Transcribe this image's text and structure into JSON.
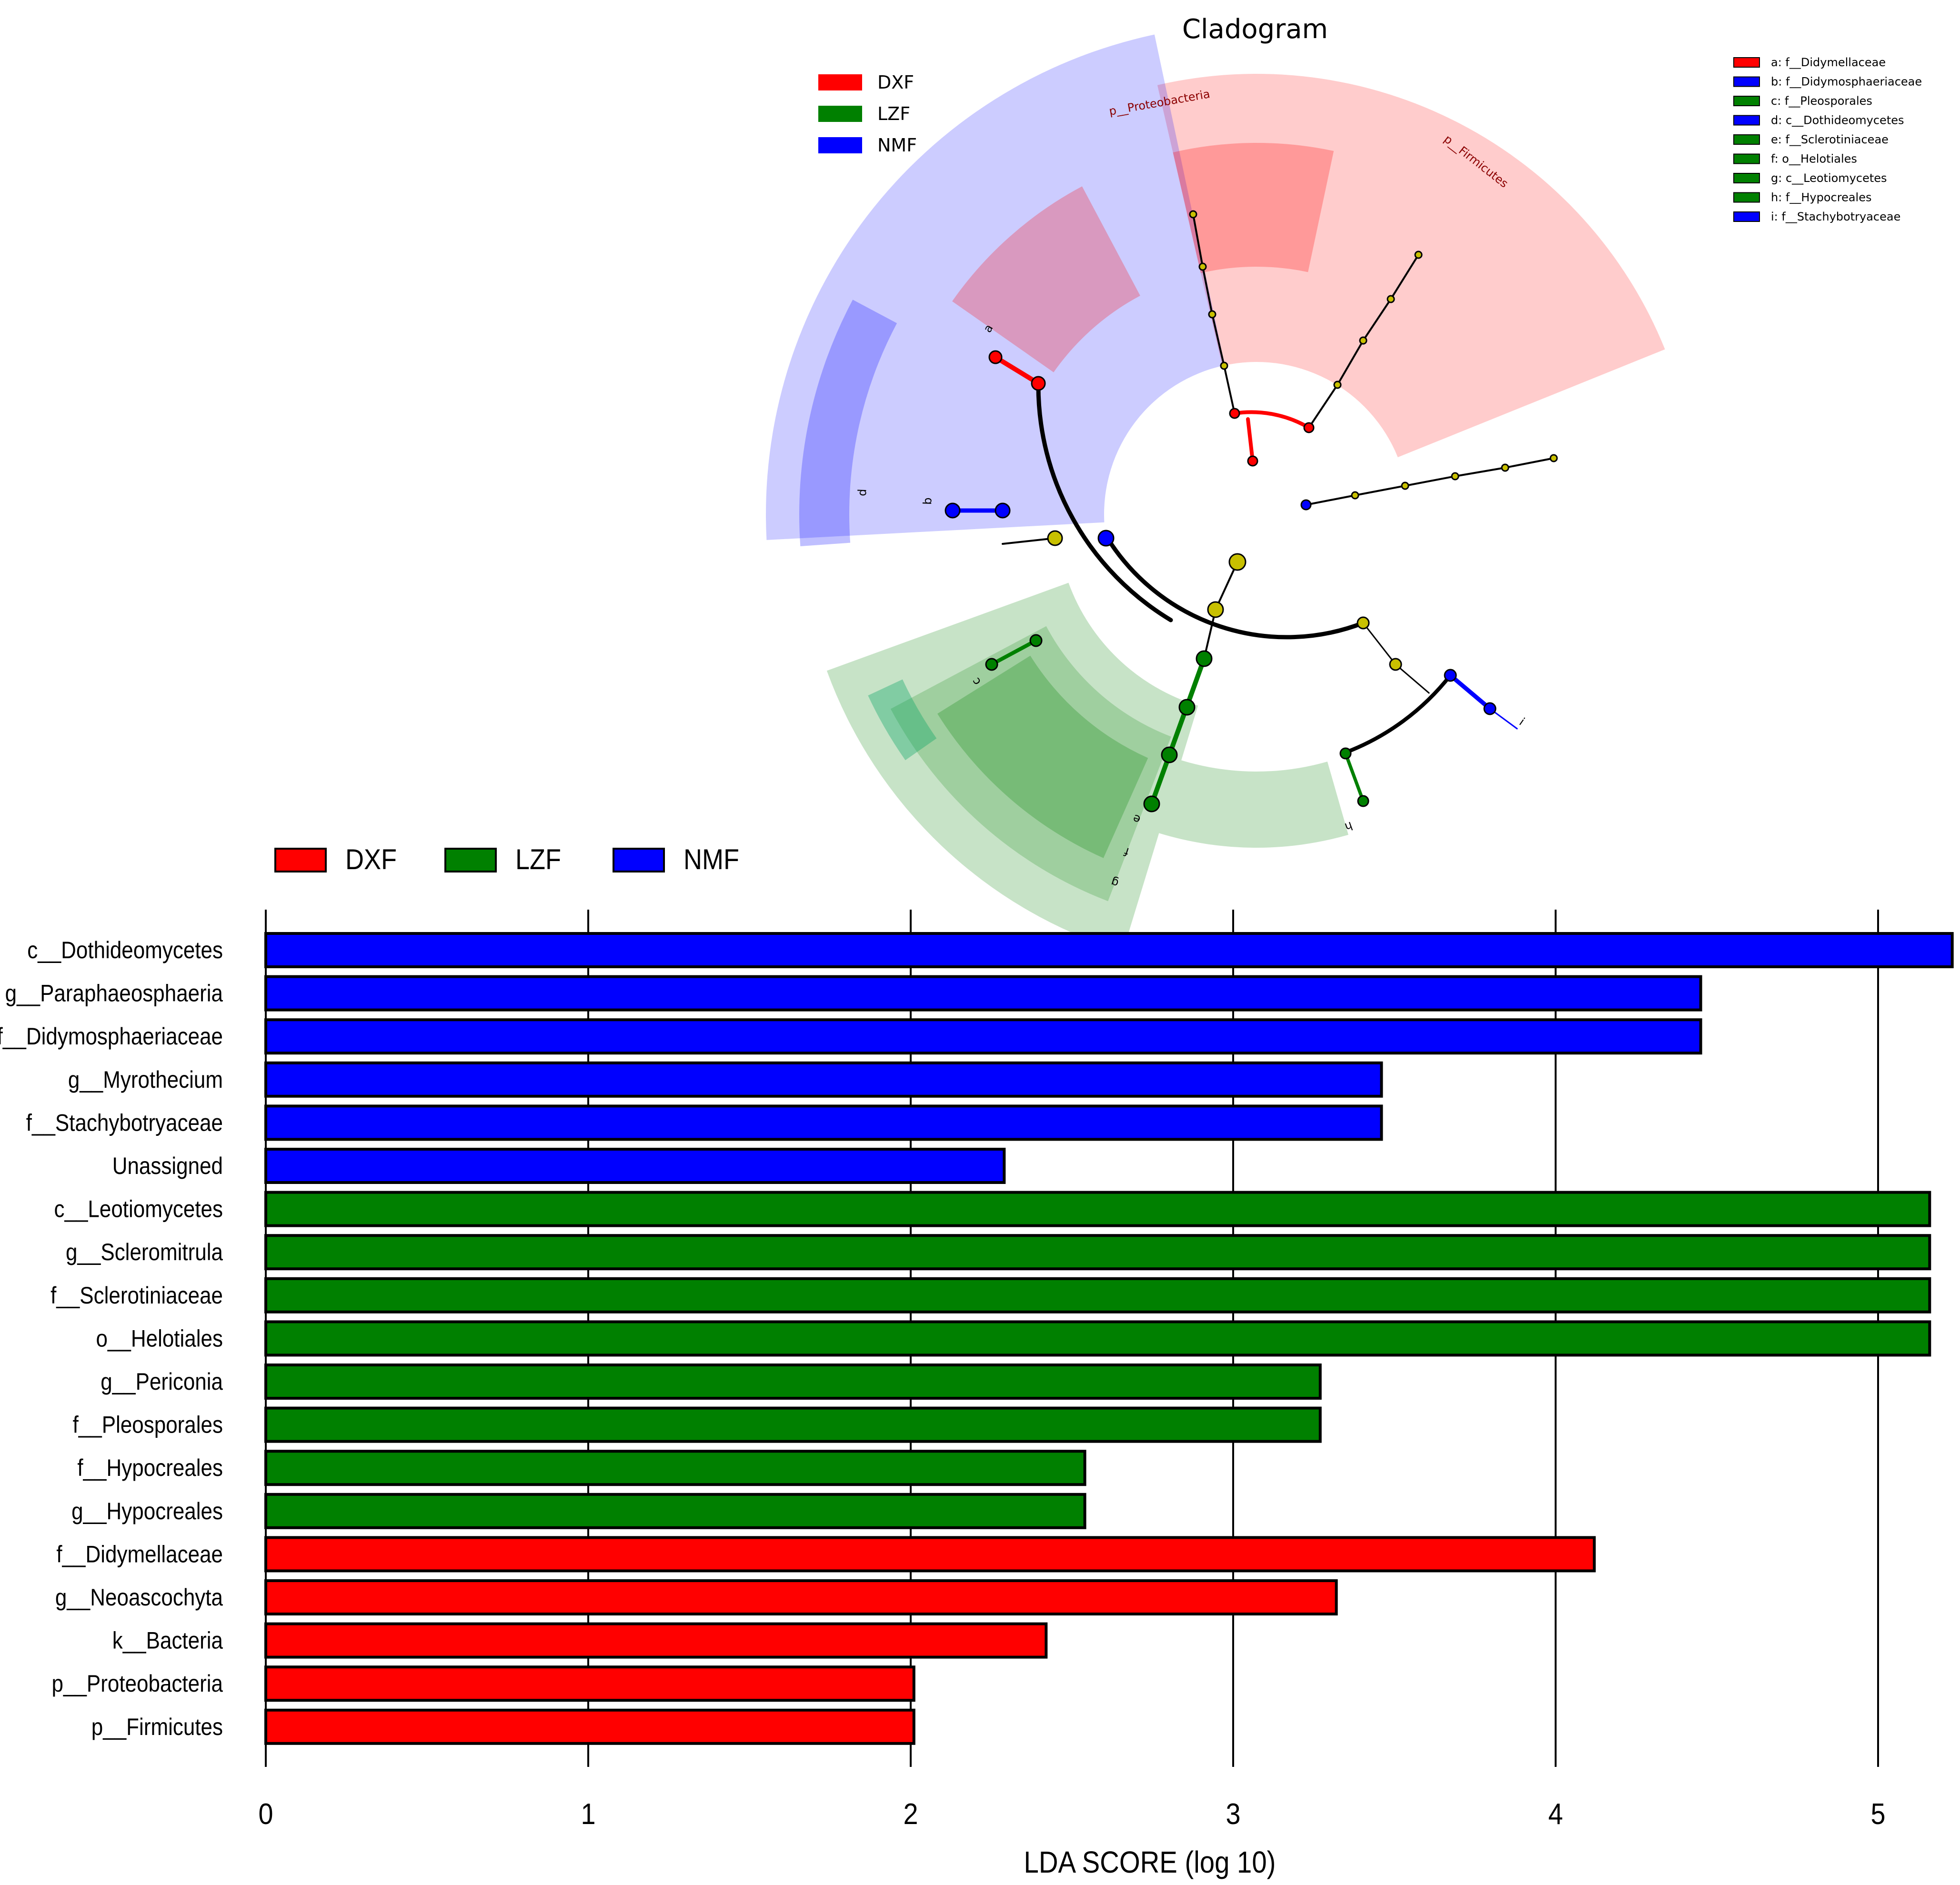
{
  "cladogram": {
    "title": "Cladogram",
    "legend": [
      {
        "label": "DXF",
        "color": "#ff0000"
      },
      {
        "label": "LZF",
        "color": "#008000"
      },
      {
        "label": "NMF",
        "color": "#0000ff"
      }
    ],
    "key": [
      {
        "label": "a: f__Didymellaceae",
        "color": "#ff0000"
      },
      {
        "label": "b: f__Didymosphaeriaceae",
        "color": "#0000ff"
      },
      {
        "label": "c: f__Pleosporales",
        "color": "#008000"
      },
      {
        "label": "d: c__Dothideomycetes",
        "color": "#0000ff"
      },
      {
        "label": "e: f__Sclerotiniaceae",
        "color": "#008000"
      },
      {
        "label": "f: o__Helotiales",
        "color": "#008000"
      },
      {
        "label": "g: c__Leotiomycetes",
        "color": "#008000"
      },
      {
        "label": "h: f__Hypocreales",
        "color": "#008000"
      },
      {
        "label": "i: f__Stachybotryaceae",
        "color": "#0000ff"
      }
    ],
    "sector_labels": {
      "proteobacteria": "p__Proteobacteria",
      "firmicutes": "p__Firmicutes",
      "a": "a",
      "b": "b",
      "c": "c",
      "d": "d",
      "e": "e",
      "f": "f",
      "g": "g",
      "h": "h",
      "i": "i"
    }
  },
  "chart_data": {
    "type": "bar",
    "orientation": "horizontal",
    "xlabel": "LDA SCORE (log 10)",
    "xlim": [
      0,
      5.23
    ],
    "xticks": [
      0,
      1,
      2,
      3,
      4,
      5
    ],
    "legend": [
      {
        "label": "DXF",
        "color": "#ff0000"
      },
      {
        "label": "LZF",
        "color": "#008000"
      },
      {
        "label": "NMF",
        "color": "#0000ff"
      }
    ],
    "bars": [
      {
        "label": "c__Dothideomycetes",
        "value": 5.23,
        "group": "NMF",
        "color": "#0000ff"
      },
      {
        "label": "g__Paraphaeosphaeria",
        "value": 4.45,
        "group": "NMF",
        "color": "#0000ff"
      },
      {
        "label": "f__Didymosphaeriaceae",
        "value": 4.45,
        "group": "NMF",
        "color": "#0000ff"
      },
      {
        "label": "g__Myrothecium",
        "value": 3.46,
        "group": "NMF",
        "color": "#0000ff"
      },
      {
        "label": "f__Stachybotryaceae",
        "value": 3.46,
        "group": "NMF",
        "color": "#0000ff"
      },
      {
        "label": "Unassigned",
        "value": 2.29,
        "group": "NMF",
        "color": "#0000ff"
      },
      {
        "label": "c__Leotiomycetes",
        "value": 5.16,
        "group": "LZF",
        "color": "#008000"
      },
      {
        "label": "g__Scleromitrula",
        "value": 5.16,
        "group": "LZF",
        "color": "#008000"
      },
      {
        "label": "f__Sclerotiniaceae",
        "value": 5.16,
        "group": "LZF",
        "color": "#008000"
      },
      {
        "label": "o__Helotiales",
        "value": 5.16,
        "group": "LZF",
        "color": "#008000"
      },
      {
        "label": "g__Periconia",
        "value": 3.27,
        "group": "LZF",
        "color": "#008000"
      },
      {
        "label": "f__Pleosporales",
        "value": 3.27,
        "group": "LZF",
        "color": "#008000"
      },
      {
        "label": "f__Hypocreales",
        "value": 2.54,
        "group": "LZF",
        "color": "#008000"
      },
      {
        "label": "g__Hypocreales",
        "value": 2.54,
        "group": "LZF",
        "color": "#008000"
      },
      {
        "label": "f__Didymellaceae",
        "value": 4.12,
        "group": "DXF",
        "color": "#ff0000"
      },
      {
        "label": "g__Neoascochyta",
        "value": 3.32,
        "group": "DXF",
        "color": "#ff0000"
      },
      {
        "label": "k__Bacteria",
        "value": 2.42,
        "group": "DXF",
        "color": "#ff0000"
      },
      {
        "label": "p__Proteobacteria",
        "value": 2.01,
        "group": "DXF",
        "color": "#ff0000"
      },
      {
        "label": "p__Firmicutes",
        "value": 2.01,
        "group": "DXF",
        "color": "#ff0000"
      }
    ]
  }
}
